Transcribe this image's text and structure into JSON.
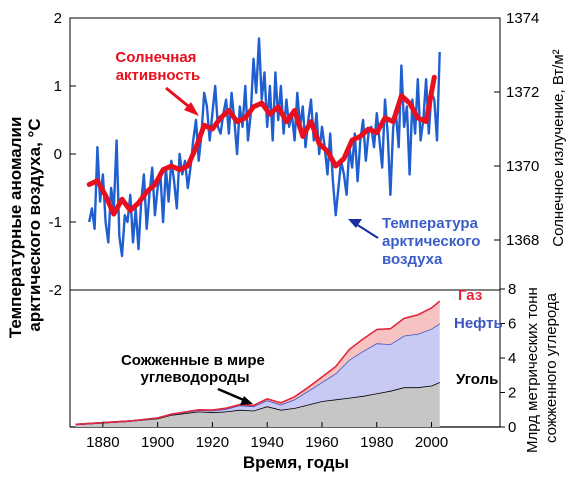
{
  "chart_data": [
    {
      "type": "line",
      "title": "",
      "xlabel": "Время, годы",
      "ylabel_left": "Температурные аномалии арктического воздуха, °C",
      "ylabel_right": "Солнечное излучение, Вт/м²",
      "xlim": [
        1868,
        2025
      ],
      "ylim_left": [
        -2,
        2
      ],
      "ylim_right": [
        1367,
        1374
      ],
      "x_ticks": [
        1880,
        1900,
        1920,
        1940,
        1960,
        1980,
        2000
      ],
      "y_ticks_left": [
        2,
        1,
        0,
        -1,
        -2
      ],
      "y_ticks_right": [
        1374,
        1372,
        1370,
        1368
      ],
      "series": [
        {
          "name": "Солнечная активность",
          "axis": "right",
          "color": "#e8101e",
          "x": [
            1875,
            1878,
            1881,
            1884,
            1887,
            1890,
            1893,
            1896,
            1899,
            1902,
            1905,
            1908,
            1911,
            1914,
            1917,
            1920,
            1923,
            1926,
            1929,
            1932,
            1935,
            1938,
            1941,
            1944,
            1947,
            1950,
            1953,
            1956,
            1959,
            1962,
            1965,
            1968,
            1971,
            1974,
            1977,
            1980,
            1983,
            1986,
            1989,
            1992,
            1995,
            1998,
            2001
          ],
          "values": [
            1369.5,
            1369.6,
            1369.2,
            1368.7,
            1369.1,
            1368.8,
            1369.0,
            1369.3,
            1369.5,
            1369.9,
            1370.0,
            1369.9,
            1370.0,
            1370.5,
            1371.1,
            1371.0,
            1371.3,
            1371.5,
            1371.2,
            1371.3,
            1371.6,
            1371.7,
            1371.4,
            1371.6,
            1371.2,
            1371.5,
            1370.8,
            1371.2,
            1370.6,
            1370.4,
            1370.0,
            1370.2,
            1370.7,
            1370.8,
            1371.0,
            1370.9,
            1371.3,
            1371.2,
            1371.9,
            1371.7,
            1371.3,
            1371.2,
            1372.4
          ]
        },
        {
          "name": "Температура арктического воздуха",
          "axis": "left",
          "color": "#1f5fd0",
          "x": [
            1875,
            1876,
            1877,
            1878,
            1879,
            1880,
            1881,
            1882,
            1883,
            1884,
            1885,
            1886,
            1887,
            1888,
            1889,
            1890,
            1891,
            1892,
            1893,
            1894,
            1895,
            1896,
            1897,
            1898,
            1899,
            1900,
            1901,
            1902,
            1903,
            1904,
            1905,
            1906,
            1907,
            1908,
            1909,
            1910,
            1911,
            1912,
            1913,
            1914,
            1915,
            1916,
            1917,
            1918,
            1919,
            1920,
            1921,
            1922,
            1923,
            1924,
            1925,
            1926,
            1927,
            1928,
            1929,
            1930,
            1931,
            1932,
            1933,
            1934,
            1935,
            1936,
            1937,
            1938,
            1939,
            1940,
            1941,
            1942,
            1943,
            1944,
            1945,
            1946,
            1947,
            1948,
            1949,
            1950,
            1951,
            1952,
            1953,
            1954,
            1955,
            1956,
            1957,
            1958,
            1959,
            1960,
            1961,
            1962,
            1963,
            1964,
            1965,
            1966,
            1967,
            1968,
            1969,
            1970,
            1971,
            1972,
            1973,
            1974,
            1975,
            1976,
            1977,
            1978,
            1979,
            1980,
            1981,
            1982,
            1983,
            1984,
            1985,
            1986,
            1987,
            1988,
            1989,
            1990,
            1991,
            1992,
            1993,
            1994,
            1995,
            1996,
            1997,
            1998,
            1999,
            2000,
            2001,
            2002,
            2003
          ],
          "values": [
            -1.0,
            -0.8,
            -1.1,
            0.1,
            -0.7,
            -0.3,
            -1.0,
            -1.3,
            -0.5,
            -0.8,
            0.2,
            -1.2,
            -1.5,
            -0.9,
            -1.0,
            -0.6,
            -1.3,
            -0.8,
            -1.4,
            -0.7,
            -0.3,
            -1.1,
            -0.6,
            -0.2,
            -0.9,
            -0.5,
            -0.3,
            -1.0,
            -0.2,
            -0.7,
            -0.1,
            -0.4,
            -0.8,
            0.0,
            -0.3,
            -0.1,
            -0.5,
            -0.2,
            0.2,
            0.5,
            -0.1,
            0.3,
            0.9,
            0.7,
            0.2,
            0.6,
            1.0,
            0.4,
            0.3,
            0.6,
            0.8,
            0.3,
            0.9,
            0.5,
            0.0,
            0.7,
            0.4,
            1.0,
            0.2,
            0.6,
            1.4,
            0.9,
            1.7,
            0.8,
            1.2,
            0.4,
            1.0,
            0.2,
            1.2,
            0.5,
            1.0,
            0.3,
            0.8,
            0.4,
            0.6,
            0.2,
            0.9,
            0.4,
            0.7,
            0.1,
            0.5,
            0.8,
            0.2,
            0.6,
            0.0,
            0.4,
            0.1,
            -0.3,
            0.3,
            -0.4,
            -0.9,
            -0.5,
            -0.1,
            -0.3,
            -0.6,
            0.1,
            -0.2,
            0.3,
            -0.4,
            0.2,
            0.5,
            -0.1,
            0.3,
            0.4,
            0.1,
            0.6,
            0.2,
            -0.2,
            0.8,
            0.3,
            -0.6,
            0.4,
            0.6,
            0.1,
            1.3,
            0.4,
            0.7,
            -0.3,
            0.8,
            0.3,
            1.1,
            0.2,
            0.5,
            1.1,
            0.3,
            0.9,
            0.8,
            0.2,
            1.5
          ]
        }
      ],
      "annotations": [
        {
          "text": [
            "Солнечная",
            "активность"
          ],
          "color": "#e8101e"
        },
        {
          "text": [
            "Температура",
            "арктического",
            "воздуха"
          ],
          "color": "#3a5dc8"
        }
      ]
    },
    {
      "type": "area",
      "title": "",
      "xlabel": "Время, годы",
      "ylabel_right": "Млрд метрических тонн сожженного углерода",
      "xlim": [
        1868,
        2025
      ],
      "ylim": [
        0,
        8
      ],
      "x_ticks": [
        1880,
        1900,
        1920,
        1940,
        1960,
        1980,
        2000
      ],
      "y_ticks_right": [
        8,
        6,
        4,
        2,
        0
      ],
      "x": [
        1870,
        1880,
        1890,
        1900,
        1905,
        1910,
        1915,
        1920,
        1925,
        1930,
        1935,
        1940,
        1945,
        1950,
        1955,
        1960,
        1965,
        1970,
        1975,
        1980,
        1985,
        1990,
        1995,
        2000,
        2003
      ],
      "series": [
        {
          "name": "Уголь",
          "color": "#c6c6c6",
          "values": [
            0.15,
            0.25,
            0.35,
            0.5,
            0.7,
            0.8,
            0.9,
            0.85,
            0.9,
            1.0,
            0.95,
            1.2,
            1.0,
            1.1,
            1.3,
            1.5,
            1.6,
            1.7,
            1.8,
            1.95,
            2.1,
            2.3,
            2.3,
            2.4,
            2.6
          ]
        },
        {
          "name": "Нефть",
          "color": "#c9c9f5",
          "values": [
            0.0,
            0.0,
            0.0,
            0.02,
            0.03,
            0.05,
            0.08,
            0.1,
            0.15,
            0.25,
            0.25,
            0.35,
            0.3,
            0.5,
            0.8,
            1.1,
            1.5,
            2.2,
            2.6,
            2.9,
            2.7,
            3.0,
            3.1,
            3.3,
            3.4
          ]
        },
        {
          "name": "Газ",
          "color": "#f6c2c2",
          "values": [
            0.0,
            0.0,
            0.0,
            0.0,
            0.01,
            0.02,
            0.02,
            0.03,
            0.04,
            0.05,
            0.05,
            0.08,
            0.1,
            0.15,
            0.2,
            0.3,
            0.4,
            0.6,
            0.7,
            0.8,
            0.9,
            1.0,
            1.1,
            1.2,
            1.3
          ]
        }
      ],
      "annotations": [
        {
          "text": [
            "Сожженные в мире",
            "углеводороды"
          ],
          "color": "#000000"
        }
      ]
    }
  ]
}
